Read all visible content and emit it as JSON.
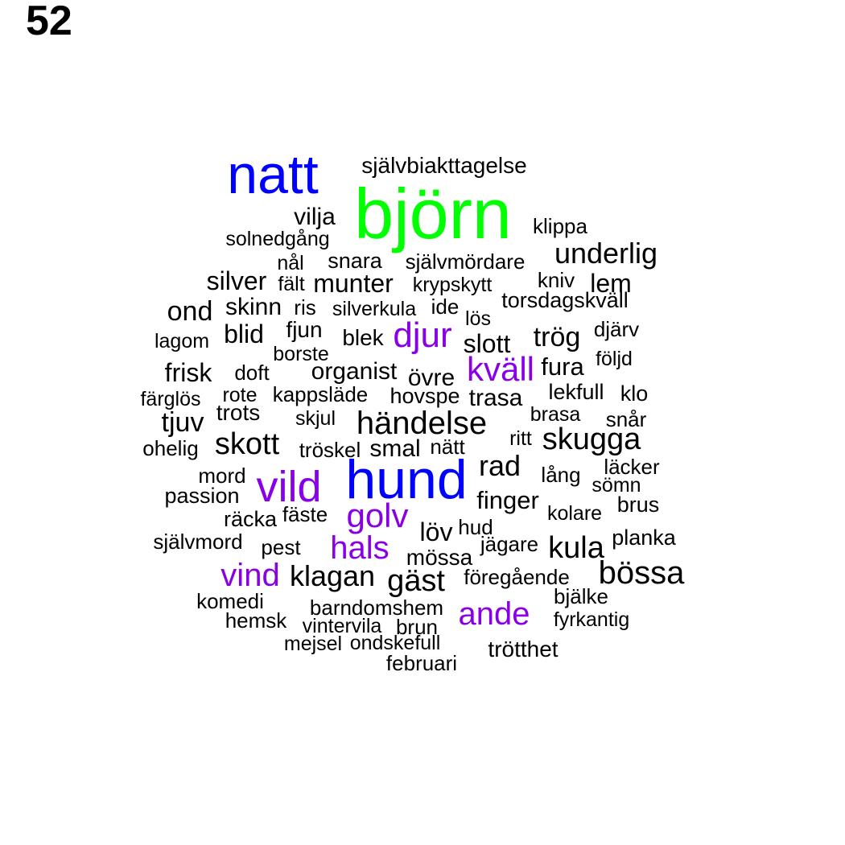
{
  "page_number": "52",
  "colors": {
    "tier1": "#00ff00",
    "tier2": "#0000ff",
    "tier3": "#8a00e6",
    "default": "#000000"
  },
  "words": [
    {
      "text": "björn",
      "tier": "tier1"
    },
    {
      "text": "natt",
      "tier": "tier2"
    },
    {
      "text": "hund",
      "tier": "tier2"
    },
    {
      "text": "vild",
      "tier": "tier3"
    },
    {
      "text": "djur",
      "tier": "tier3"
    },
    {
      "text": "kväll",
      "tier": "tier3"
    },
    {
      "text": "golv",
      "tier": "tier3"
    },
    {
      "text": "hals",
      "tier": "tier3"
    },
    {
      "text": "vind",
      "tier": "tier3"
    },
    {
      "text": "ande",
      "tier": "tier3"
    },
    {
      "text": "självbiakttagelse",
      "tier": "default"
    },
    {
      "text": "vilja",
      "tier": "default"
    },
    {
      "text": "klippa",
      "tier": "default"
    },
    {
      "text": "solnedgång",
      "tier": "default"
    },
    {
      "text": "underlig",
      "tier": "default"
    },
    {
      "text": "nål",
      "tier": "default"
    },
    {
      "text": "snara",
      "tier": "default"
    },
    {
      "text": "självmördare",
      "tier": "default"
    },
    {
      "text": "silver",
      "tier": "default"
    },
    {
      "text": "fält",
      "tier": "default"
    },
    {
      "text": "munter",
      "tier": "default"
    },
    {
      "text": "krypskytt",
      "tier": "default"
    },
    {
      "text": "kniv",
      "tier": "default"
    },
    {
      "text": "lem",
      "tier": "default"
    },
    {
      "text": "ond",
      "tier": "default"
    },
    {
      "text": "skinn",
      "tier": "default"
    },
    {
      "text": "ris",
      "tier": "default"
    },
    {
      "text": "silverkula",
      "tier": "default"
    },
    {
      "text": "ide",
      "tier": "default"
    },
    {
      "text": "lös",
      "tier": "default"
    },
    {
      "text": "torsdagskväll",
      "tier": "default"
    },
    {
      "text": "lagom",
      "tier": "default"
    },
    {
      "text": "blid",
      "tier": "default"
    },
    {
      "text": "fjun",
      "tier": "default"
    },
    {
      "text": "blek",
      "tier": "default"
    },
    {
      "text": "slott",
      "tier": "default"
    },
    {
      "text": "trög",
      "tier": "default"
    },
    {
      "text": "djärv",
      "tier": "default"
    },
    {
      "text": "borste",
      "tier": "default"
    },
    {
      "text": "frisk",
      "tier": "default"
    },
    {
      "text": "doft",
      "tier": "default"
    },
    {
      "text": "organist",
      "tier": "default"
    },
    {
      "text": "övre",
      "tier": "default"
    },
    {
      "text": "fura",
      "tier": "default"
    },
    {
      "text": "följd",
      "tier": "default"
    },
    {
      "text": "färglös",
      "tier": "default"
    },
    {
      "text": "rote",
      "tier": "default"
    },
    {
      "text": "kappsläde",
      "tier": "default"
    },
    {
      "text": "hovspe",
      "tier": "default"
    },
    {
      "text": "trasa",
      "tier": "default"
    },
    {
      "text": "lekfull",
      "tier": "default"
    },
    {
      "text": "klo",
      "tier": "default"
    },
    {
      "text": "tjuv",
      "tier": "default"
    },
    {
      "text": "trots",
      "tier": "default"
    },
    {
      "text": "skjul",
      "tier": "default"
    },
    {
      "text": "händelse",
      "tier": "default"
    },
    {
      "text": "brasa",
      "tier": "default"
    },
    {
      "text": "snår",
      "tier": "default"
    },
    {
      "text": "ohelig",
      "tier": "default"
    },
    {
      "text": "skott",
      "tier": "default"
    },
    {
      "text": "tröskel",
      "tier": "default"
    },
    {
      "text": "smal",
      "tier": "default"
    },
    {
      "text": "nätt",
      "tier": "default"
    },
    {
      "text": "ritt",
      "tier": "default"
    },
    {
      "text": "skugga",
      "tier": "default"
    },
    {
      "text": "rad",
      "tier": "default"
    },
    {
      "text": "mord",
      "tier": "default"
    },
    {
      "text": "lång",
      "tier": "default"
    },
    {
      "text": "läcker",
      "tier": "default"
    },
    {
      "text": "sömn",
      "tier": "default"
    },
    {
      "text": "passion",
      "tier": "default"
    },
    {
      "text": "finger",
      "tier": "default"
    },
    {
      "text": "brus",
      "tier": "default"
    },
    {
      "text": "räcka",
      "tier": "default"
    },
    {
      "text": "fäste",
      "tier": "default"
    },
    {
      "text": "kolare",
      "tier": "default"
    },
    {
      "text": "löv",
      "tier": "default"
    },
    {
      "text": "hud",
      "tier": "default"
    },
    {
      "text": "självmord",
      "tier": "default"
    },
    {
      "text": "pest",
      "tier": "default"
    },
    {
      "text": "jägare",
      "tier": "default"
    },
    {
      "text": "kula",
      "tier": "default"
    },
    {
      "text": "planka",
      "tier": "default"
    },
    {
      "text": "mössa",
      "tier": "default"
    },
    {
      "text": "klagan",
      "tier": "default"
    },
    {
      "text": "gäst",
      "tier": "default"
    },
    {
      "text": "föregående",
      "tier": "default"
    },
    {
      "text": "bössa",
      "tier": "default"
    },
    {
      "text": "komedi",
      "tier": "default"
    },
    {
      "text": "bjälke",
      "tier": "default"
    },
    {
      "text": "barndomshem",
      "tier": "default"
    },
    {
      "text": "hemsk",
      "tier": "default"
    },
    {
      "text": "vintervila",
      "tier": "default"
    },
    {
      "text": "brun",
      "tier": "default"
    },
    {
      "text": "fyrkantig",
      "tier": "default"
    },
    {
      "text": "mejsel",
      "tier": "default"
    },
    {
      "text": "ondskefull",
      "tier": "default"
    },
    {
      "text": "trötthet",
      "tier": "default"
    },
    {
      "text": "februari",
      "tier": "default"
    }
  ]
}
